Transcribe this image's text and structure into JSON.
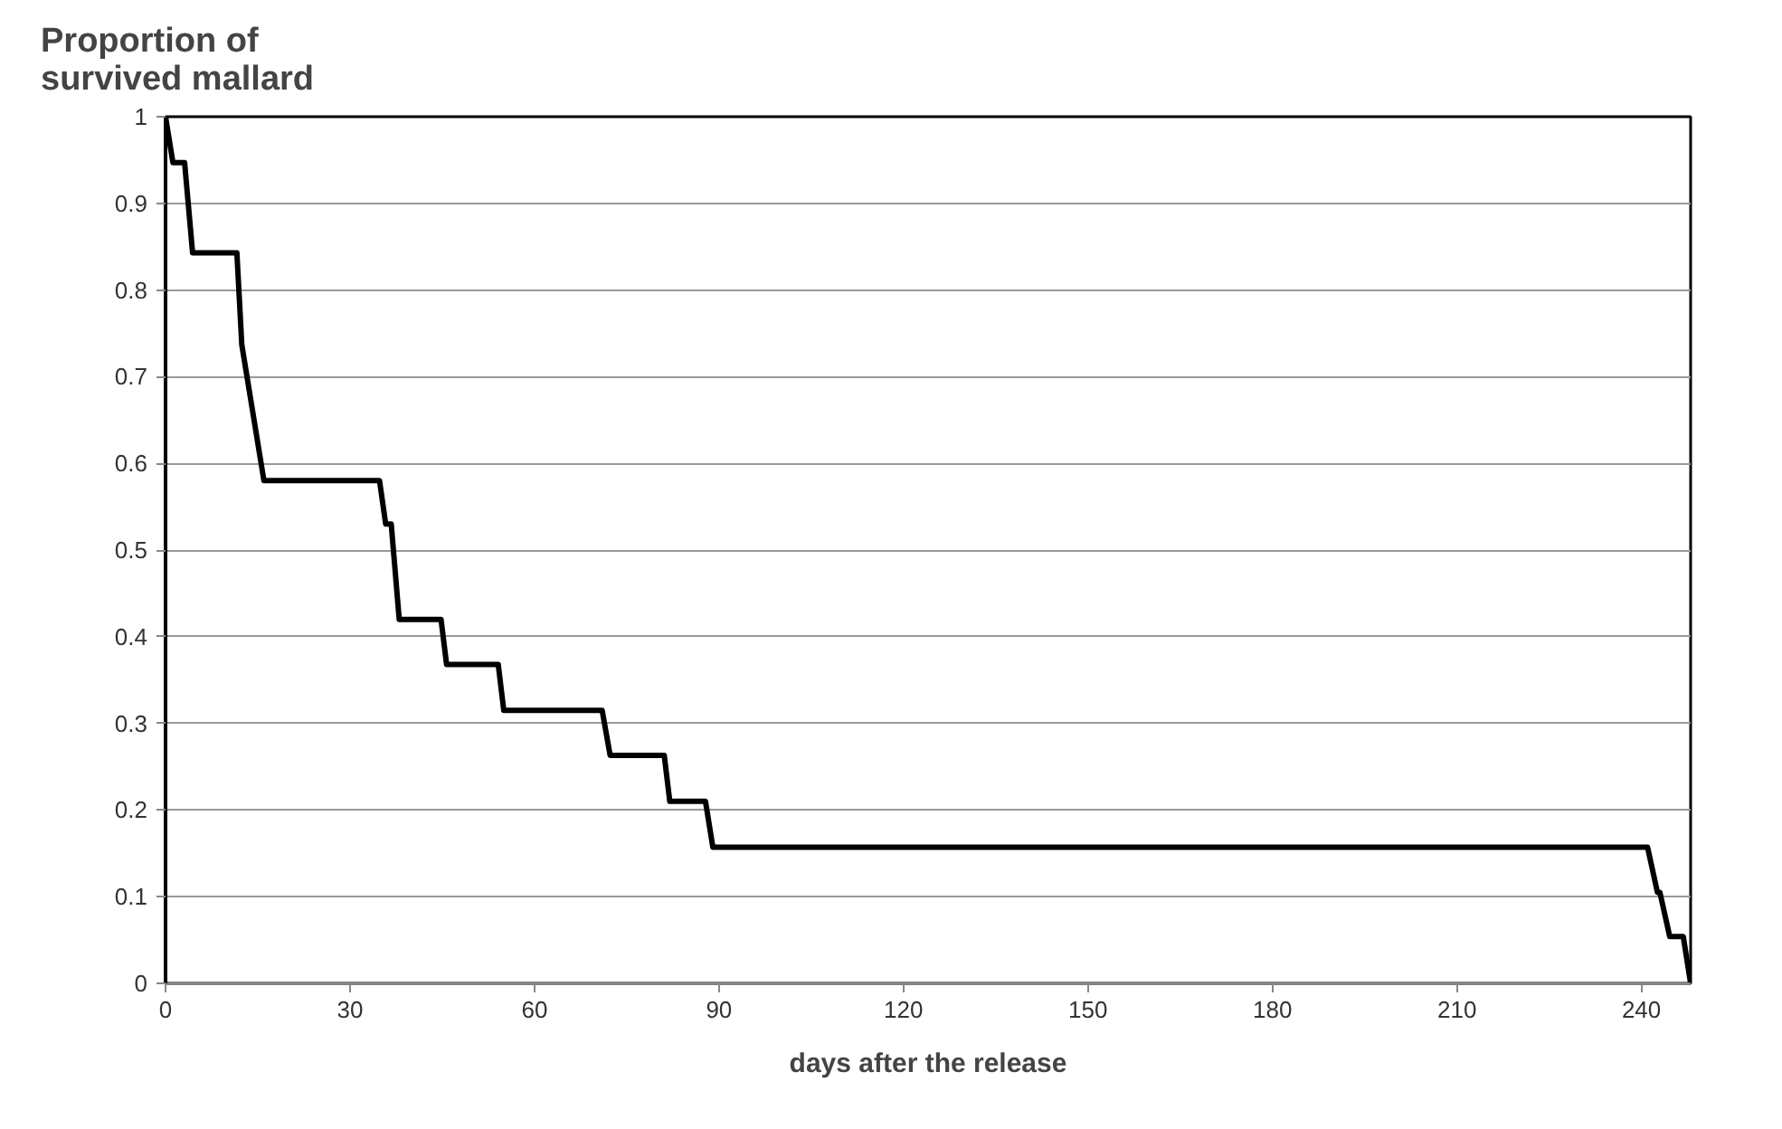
{
  "chart_data": {
    "type": "line",
    "title": "Proportion of\nsurvived mallard",
    "xlabel": "days after the release",
    "x": [
      0,
      1.2,
      3.1,
      4.4,
      11.6,
      12.4,
      16,
      34.8,
      35.8,
      36.7,
      38,
      44.8,
      45.7,
      54.1,
      55,
      71,
      72.3,
      81.1,
      82,
      87.8,
      89,
      241,
      242.6,
      243,
      244.6,
      246.8,
      248
    ],
    "series": [
      {
        "color": "#000000",
        "values": [
          1,
          0.947,
          0.947,
          0.843,
          0.843,
          0.737,
          0.58,
          0.58,
          0.53,
          0.53,
          0.42,
          0.42,
          0.368,
          0.368,
          0.315,
          0.315,
          0.263,
          0.263,
          0.21,
          0.21,
          0.157,
          0.157,
          0.105,
          0.105,
          0.054,
          0.054,
          0
        ]
      }
    ],
    "xlim": [
      0,
      248
    ],
    "ylim": [
      0,
      1
    ],
    "xticks": [
      0,
      30,
      60,
      90,
      120,
      150,
      180,
      210,
      240
    ],
    "yticks": [
      0,
      0.1,
      0.2,
      0.3,
      0.4,
      0.5,
      0.6,
      0.7,
      0.8,
      0.9,
      1
    ],
    "grid": "y",
    "marker": "none",
    "line_style": "solid"
  }
}
